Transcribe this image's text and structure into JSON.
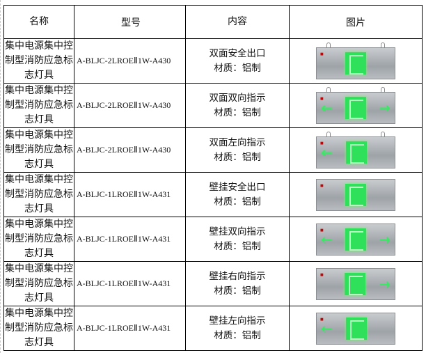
{
  "headers": [
    "名称",
    "型号",
    "内容",
    "图片"
  ],
  "rows": [
    {
      "name": "集中电源集中控制型消防应急标志灯具",
      "model": "A-BLJC-2LROEⅡ1W-A430",
      "content": "双面安全出口",
      "material": "材质：铝制",
      "image": "hanging-exit-sign",
      "arrows": "none"
    },
    {
      "name": "集中电源集中控制型消防应急标志灯具",
      "model": "A-BLJC-2LROEⅡ1W-A430",
      "content": "双面双向指示",
      "material": "材质：铝制",
      "image": "hanging-bidirectional-sign",
      "arrows": "both"
    },
    {
      "name": "集中电源集中控制型消防应急标志灯具",
      "model": "A-BLJC-2LROEⅡ1W-A430",
      "content": "双面左向指示",
      "material": "材质：铝制",
      "image": "hanging-left-sign",
      "arrows": "left"
    },
    {
      "name": "集中电源集中控制型消防应急标志灯具",
      "model": "A-BLJC-1LROEⅡ1W-A431",
      "content": "壁挂安全出口",
      "material": "材质：铝制",
      "image": "wall-exit-sign",
      "arrows": "none"
    },
    {
      "name": "集中电源集中控制型消防应急标志灯具",
      "model": "A-BLJC-1LROEⅡ1W-A431",
      "content": "壁挂双向指示",
      "material": "材质：铝制",
      "image": "wall-bidirectional-sign",
      "arrows": "both"
    },
    {
      "name": "集中电源集中控制型消防应急标志灯具",
      "model": "A-BLJC-1LROEⅡ1W-A431",
      "content": "壁挂右向指示",
      "material": "材质：铝制",
      "image": "wall-right-sign",
      "arrows": "right"
    },
    {
      "name": "集中电源集中控制型消防应急标志灯具",
      "model": "A-BLJC-1LROEⅡ1W-A431",
      "content": "壁挂左向指示",
      "material": "材质：铝制",
      "image": "wall-left-sign",
      "arrows": "left"
    }
  ]
}
